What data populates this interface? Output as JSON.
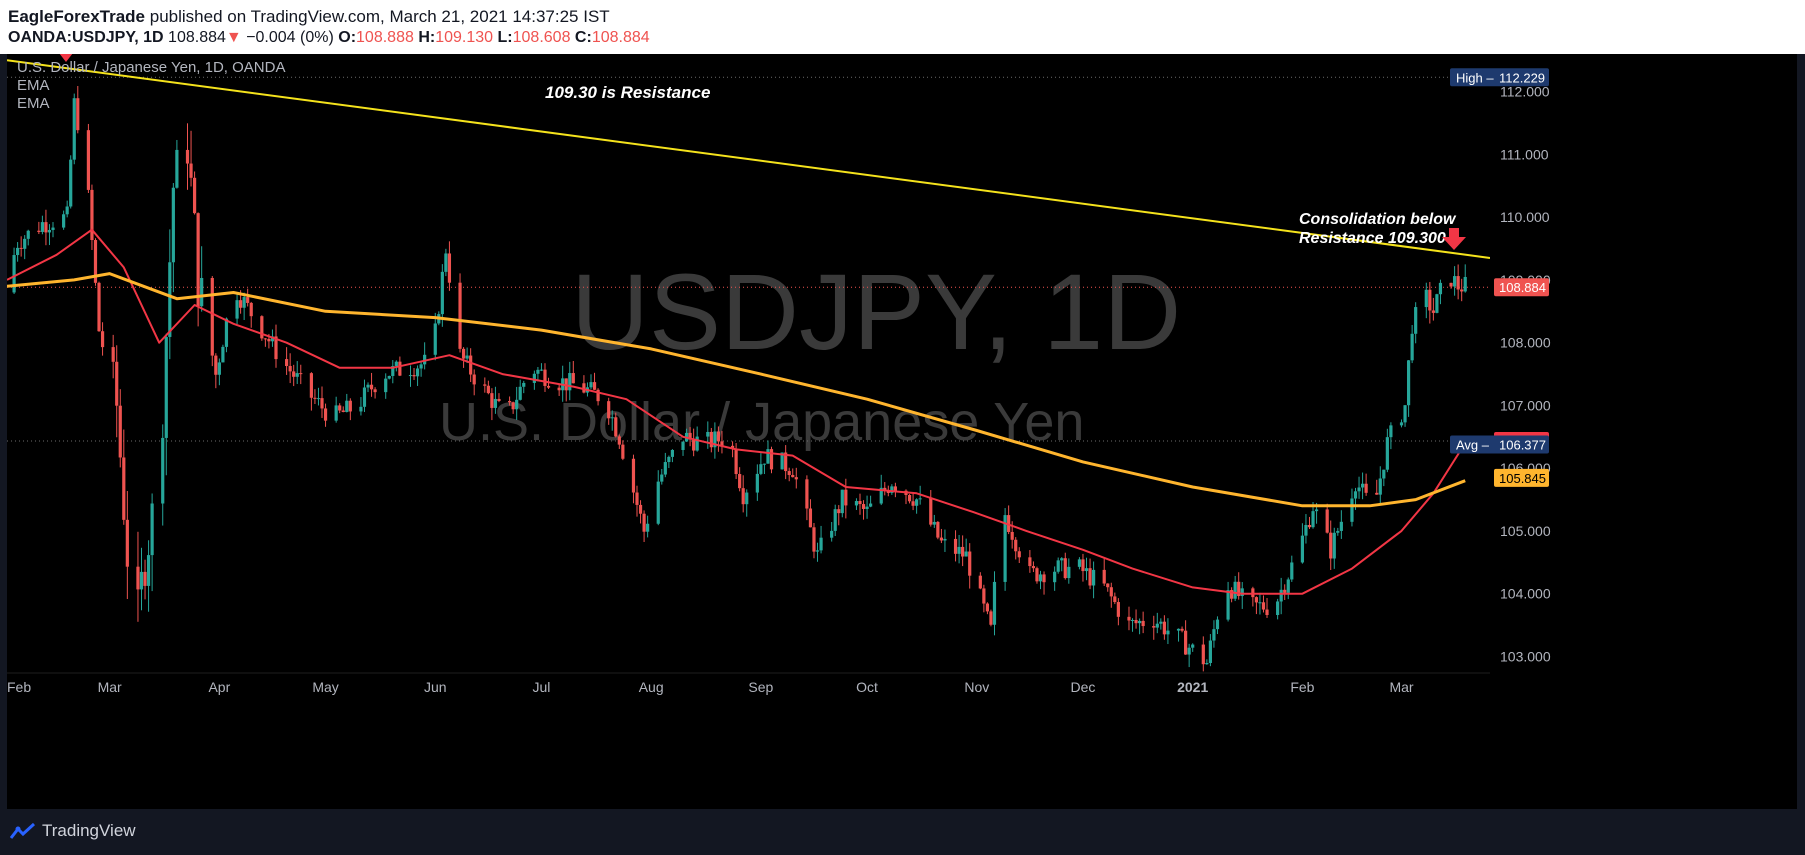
{
  "header": {
    "author": "EagleForexTrade",
    "published_text": "published on TradingView.com, March 21, 2021 14:37:25 IST",
    "symbol": "OANDA:USDJPY, 1D",
    "last": "108.884",
    "arrow": "▼",
    "change": "−0.004 (0%)",
    "o_label": "O:",
    "o_value": "108.888",
    "h_label": "H:",
    "h_value": "109.130",
    "l_label": "L:",
    "l_value": "108.608",
    "c_label": "C:",
    "c_value": "108.884"
  },
  "legend": {
    "title": "U.S. Dollar / Japanese Yen, 1D, OANDA",
    "ema1": "EMA",
    "ema2": "EMA"
  },
  "watermark": {
    "line1": "USDJPY, 1D",
    "line2": "U.S. Dollar / Japanese Yen"
  },
  "annotations": {
    "resistance": "109.30 is Resistance",
    "consolidation_1": "Consolidation below",
    "consolidation_2": "Resistance 109.300"
  },
  "price_labels": {
    "high_label": "High",
    "high_value": "112.229",
    "last_value": "108.884",
    "ema_red_value": "106.434",
    "avg_label": "Avg",
    "avg_value": "106.377",
    "ema_orange_value": "105.845"
  },
  "footer": {
    "brand": "TradingView"
  },
  "colors": {
    "up": "#26a69a",
    "down": "#ef5350",
    "ema_fast": "#f23645",
    "ema_slow": "#ffb52e",
    "trendline": "#f5e31c",
    "background": "#000000"
  },
  "chart_data": {
    "type": "candlestick",
    "title": "U.S. Dollar / Japanese Yen, 1D, OANDA",
    "ylim": [
      102.8,
      112.6
    ],
    "y_ticks": [
      "112.000",
      "111.000",
      "110.000",
      "109.000",
      "108.000",
      "107.000",
      "106.000",
      "105.000",
      "104.000",
      "103.000"
    ],
    "x_ticks": [
      "Feb",
      "Mar",
      "Apr",
      "May",
      "Jun",
      "Jul",
      "Aug",
      "Sep",
      "Oct",
      "Nov",
      "Dec",
      "2021",
      "Feb",
      "Mar"
    ],
    "x_range": [
      "2020-02-01",
      "2021-03-26"
    ],
    "price_path": [
      [
        "2020-02-01",
        108.8
      ],
      [
        "2020-02-05",
        109.6
      ],
      [
        "2020-02-12",
        109.9
      ],
      [
        "2020-02-19",
        110.0
      ],
      [
        "2020-02-21",
        111.8
      ],
      [
        "2020-02-24",
        111.0
      ],
      [
        "2020-02-28",
        108.2
      ],
      [
        "2020-03-04",
        107.0
      ],
      [
        "2020-03-09",
        103.1
      ],
      [
        "2020-03-12",
        104.6
      ],
      [
        "2020-03-16",
        105.8
      ],
      [
        "2020-03-20",
        110.5
      ],
      [
        "2020-03-24",
        111.2
      ],
      [
        "2020-03-27",
        109.0
      ],
      [
        "2020-04-01",
        107.5
      ],
      [
        "2020-04-06",
        108.9
      ],
      [
        "2020-04-13",
        108.3
      ],
      [
        "2020-04-20",
        107.7
      ],
      [
        "2020-04-27",
        107.2
      ],
      [
        "2020-05-04",
        106.8
      ],
      [
        "2020-05-11",
        107.0
      ],
      [
        "2020-05-18",
        107.5
      ],
      [
        "2020-05-25",
        107.6
      ],
      [
        "2020-06-01",
        107.7
      ],
      [
        "2020-06-05",
        109.5
      ],
      [
        "2020-06-09",
        107.8
      ],
      [
        "2020-06-15",
        107.3
      ],
      [
        "2020-06-22",
        106.8
      ],
      [
        "2020-06-29",
        107.6
      ],
      [
        "2020-07-06",
        107.4
      ],
      [
        "2020-07-13",
        107.3
      ],
      [
        "2020-07-20",
        107.1
      ],
      [
        "2020-07-24",
        106.5
      ],
      [
        "2020-07-31",
        105.0
      ],
      [
        "2020-08-04",
        105.8
      ],
      [
        "2020-08-11",
        106.5
      ],
      [
        "2020-08-17",
        106.4
      ],
      [
        "2020-08-24",
        106.5
      ],
      [
        "2020-08-28",
        105.6
      ],
      [
        "2020-09-03",
        106.2
      ],
      [
        "2020-09-11",
        106.0
      ],
      [
        "2020-09-18",
        104.6
      ],
      [
        "2020-09-25",
        105.5
      ],
      [
        "2020-10-02",
        105.3
      ],
      [
        "2020-10-09",
        105.8
      ],
      [
        "2020-10-16",
        105.5
      ],
      [
        "2020-10-23",
        104.8
      ],
      [
        "2020-10-30",
        104.6
      ],
      [
        "2020-11-06",
        103.4
      ],
      [
        "2020-11-09",
        105.4
      ],
      [
        "2020-11-17",
        104.3
      ],
      [
        "2020-11-24",
        104.4
      ],
      [
        "2020-12-01",
        104.4
      ],
      [
        "2020-12-08",
        104.1
      ],
      [
        "2020-12-15",
        103.5
      ],
      [
        "2020-12-22",
        103.6
      ],
      [
        "2020-12-31",
        103.2
      ],
      [
        "2021-01-06",
        102.9
      ],
      [
        "2021-01-11",
        104.2
      ],
      [
        "2021-01-18",
        103.8
      ],
      [
        "2021-01-25",
        103.8
      ],
      [
        "2021-02-01",
        104.7
      ],
      [
        "2021-02-05",
        105.4
      ],
      [
        "2021-02-10",
        104.7
      ],
      [
        "2021-02-17",
        105.8
      ],
      [
        "2021-02-22",
        105.3
      ],
      [
        "2021-02-26",
        106.4
      ],
      [
        "2021-03-03",
        107.0
      ],
      [
        "2021-03-05",
        108.3
      ],
      [
        "2021-03-09",
        108.7
      ],
      [
        "2021-03-11",
        108.5
      ],
      [
        "2021-03-15",
        109.1
      ],
      [
        "2021-03-18",
        108.9
      ],
      [
        "2021-03-19",
        108.9
      ]
    ],
    "series": [
      {
        "name": "EMA",
        "color": "#f23645",
        "points": [
          [
            "2020-02-01",
            109.0
          ],
          [
            "2020-02-15",
            109.4
          ],
          [
            "2020-02-25",
            109.8
          ],
          [
            "2020-03-05",
            109.2
          ],
          [
            "2020-03-15",
            108.0
          ],
          [
            "2020-03-25",
            108.6
          ],
          [
            "2020-04-05",
            108.3
          ],
          [
            "2020-04-20",
            108.0
          ],
          [
            "2020-05-05",
            107.6
          ],
          [
            "2020-05-20",
            107.6
          ],
          [
            "2020-06-05",
            107.8
          ],
          [
            "2020-06-20",
            107.5
          ],
          [
            "2020-07-10",
            107.3
          ],
          [
            "2020-07-25",
            107.1
          ],
          [
            "2020-08-10",
            106.5
          ],
          [
            "2020-08-25",
            106.3
          ],
          [
            "2020-09-10",
            106.2
          ],
          [
            "2020-09-25",
            105.7
          ],
          [
            "2020-10-15",
            105.6
          ],
          [
            "2020-10-31",
            105.3
          ],
          [
            "2020-11-15",
            105.0
          ],
          [
            "2020-12-01",
            104.7
          ],
          [
            "2020-12-15",
            104.4
          ],
          [
            "2021-01-01",
            104.1
          ],
          [
            "2021-01-15",
            104.0
          ],
          [
            "2021-02-01",
            104.0
          ],
          [
            "2021-02-15",
            104.4
          ],
          [
            "2021-03-01",
            105.0
          ],
          [
            "2021-03-10",
            105.6
          ],
          [
            "2021-03-19",
            106.4
          ]
        ]
      },
      {
        "name": "EMA",
        "color": "#ffb52e",
        "points": [
          [
            "2020-02-01",
            108.9
          ],
          [
            "2020-02-20",
            109.0
          ],
          [
            "2020-03-01",
            109.1
          ],
          [
            "2020-03-20",
            108.7
          ],
          [
            "2020-04-05",
            108.8
          ],
          [
            "2020-05-01",
            108.5
          ],
          [
            "2020-06-01",
            108.4
          ],
          [
            "2020-07-01",
            108.2
          ],
          [
            "2020-08-01",
            107.9
          ],
          [
            "2020-09-01",
            107.5
          ],
          [
            "2020-10-01",
            107.1
          ],
          [
            "2020-11-01",
            106.6
          ],
          [
            "2020-12-01",
            106.1
          ],
          [
            "2021-01-01",
            105.7
          ],
          [
            "2021-02-01",
            105.4
          ],
          [
            "2021-02-20",
            105.4
          ],
          [
            "2021-03-05",
            105.5
          ],
          [
            "2021-03-19",
            105.8
          ]
        ]
      },
      {
        "name": "trendline",
        "color": "#f5e31c",
        "points": [
          [
            "2020-02-01",
            112.5
          ],
          [
            "2021-03-26",
            109.35
          ]
        ]
      }
    ],
    "horizontal_levels": [
      112.229,
      108.884,
      106.434
    ],
    "annotations": [
      "109.30 is Resistance",
      "Consolidation below",
      "Resistance 109.300"
    ]
  }
}
